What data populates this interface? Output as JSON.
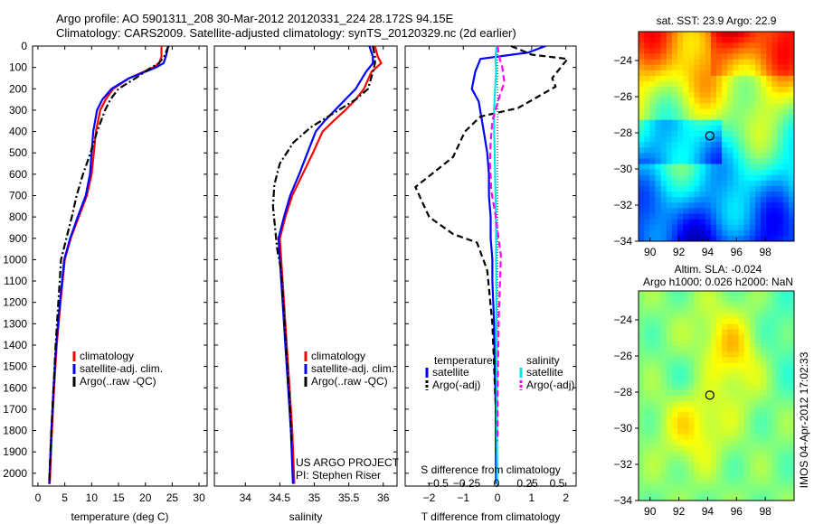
{
  "header": {
    "line1": "Argo profile: AO 5901311_208 30-Mar-2012 20120331_224 28.172S 94.15E",
    "line2": "Climatology: CARS2009. Satellite-adjusted climatology: synTS_20120329.nc (2d earlier)"
  },
  "colors": {
    "climatology": "#ff0000",
    "satellite": "#0000ff",
    "argo": "#000000",
    "sal_satellite": "#00e5e5",
    "sal_argo": "#ff00ff"
  },
  "chart_data": [
    {
      "id": "temperature",
      "type": "line",
      "xlabel": "temperature (deg C)",
      "xlim": [
        -1,
        31.5
      ],
      "ylim": [
        0,
        2060
      ],
      "xticks": [
        0,
        5,
        10,
        15,
        20,
        25,
        30
      ],
      "yticks": [
        0,
        100,
        200,
        300,
        400,
        500,
        600,
        700,
        800,
        900,
        1000,
        1100,
        1200,
        1300,
        1400,
        1500,
        1600,
        1700,
        1800,
        1900,
        2000
      ],
      "legend": [
        "climatology",
        "satellite-adj. clim.",
        "Argo(..raw -QC)"
      ],
      "series": [
        {
          "name": "climatology",
          "color": "#ff0000",
          "style": "solid",
          "x": [
            23,
            23,
            22.6,
            21.5,
            17,
            14,
            12.6,
            11.6,
            10.8,
            10.4,
            10.0,
            9.1,
            7.6,
            6.1,
            5.0,
            4.2,
            3.5,
            3.0,
            2.6,
            2.2
          ],
          "y": [
            0,
            50,
            80,
            100,
            150,
            200,
            250,
            300,
            400,
            500,
            600,
            700,
            800,
            900,
            1000,
            1200,
            1400,
            1600,
            1800,
            2050
          ]
        },
        {
          "name": "satellite-adj. clim.",
          "color": "#0000ff",
          "style": "solid",
          "x": [
            24.3,
            23.8,
            23.4,
            22.0,
            17.0,
            13.7,
            12.0,
            11.0,
            10.3,
            10.0,
            9.7,
            8.9,
            7.4,
            6.0,
            4.9,
            4.1,
            3.4,
            2.9,
            2.5,
            2.1
          ],
          "y": [
            0,
            50,
            80,
            100,
            150,
            200,
            250,
            300,
            400,
            500,
            600,
            700,
            800,
            900,
            1000,
            1200,
            1400,
            1600,
            1800,
            2050
          ]
        },
        {
          "name": "Argo(..raw -QC)",
          "color": "#000000",
          "style": "dashdot",
          "x": [
            24.3,
            23.5,
            22.5,
            20.5,
            18.2,
            15.0,
            13.5,
            12.5,
            11.0,
            9.8,
            8.4,
            7.2,
            6.3,
            5.3,
            4.3,
            3.8,
            3.3,
            2.9,
            2.5,
            2.1
          ],
          "y": [
            0,
            50,
            80,
            110,
            150,
            200,
            250,
            300,
            400,
            500,
            600,
            700,
            800,
            900,
            1000,
            1200,
            1400,
            1600,
            1800,
            2050
          ]
        }
      ]
    },
    {
      "id": "salinity",
      "type": "line",
      "xlabel": "salinity",
      "xlim": [
        33.55,
        36.2
      ],
      "ylim": [
        0,
        2060
      ],
      "xticks": [
        34,
        34.5,
        35,
        35.5,
        36
      ],
      "legend": [
        "climatology",
        "satellite-adj. clim.",
        "Argo(..raw -QC)"
      ],
      "annotation": [
        "US ARGO PROJECT",
        "PI: Stephen Riser"
      ],
      "series": [
        {
          "name": "climatology",
          "color": "#ff0000",
          "style": "solid",
          "x": [
            35.88,
            35.92,
            35.97,
            35.83,
            35.72,
            35.6,
            35.45,
            35.28,
            35.12,
            34.98,
            34.83,
            34.68,
            34.58,
            34.5,
            34.52,
            34.56,
            34.6,
            34.64,
            34.68,
            34.71
          ],
          "y": [
            0,
            50,
            80,
            120,
            200,
            250,
            300,
            350,
            400,
            500,
            600,
            700,
            800,
            900,
            1000,
            1200,
            1400,
            1600,
            1800,
            2050
          ]
        },
        {
          "name": "satellite-adj. clim.",
          "color": "#0000ff",
          "style": "solid",
          "x": [
            35.8,
            35.85,
            35.85,
            35.75,
            35.6,
            35.45,
            35.3,
            35.15,
            35.02,
            34.9,
            34.78,
            34.65,
            34.56,
            34.48,
            34.5,
            34.54,
            34.58,
            34.62,
            34.66,
            34.69
          ],
          "y": [
            0,
            50,
            80,
            120,
            200,
            250,
            300,
            350,
            400,
            500,
            600,
            700,
            800,
            900,
            1000,
            1200,
            1400,
            1600,
            1800,
            2050
          ]
        },
        {
          "name": "Argo(..raw -QC)",
          "color": "#000000",
          "style": "dashdot",
          "x": [
            35.85,
            35.88,
            35.88,
            35.85,
            35.78,
            35.6,
            35.25,
            34.95,
            34.7,
            34.5,
            34.42,
            34.4,
            34.43,
            34.46,
            34.52,
            34.56,
            34.6,
            34.64,
            34.67
          ],
          "y": [
            0,
            50,
            80,
            120,
            200,
            250,
            320,
            380,
            450,
            550,
            650,
            750,
            850,
            950,
            1050,
            1250,
            1450,
            1650,
            1850
          ]
        }
      ]
    },
    {
      "id": "difference",
      "type": "line",
      "xlabel": "T difference from climatology",
      "xlabel2": "S difference from climatology",
      "xlim": [
        -2.7,
        2.3
      ],
      "ylim": [
        0,
        2060
      ],
      "xticks": [
        -2,
        -1,
        0,
        1,
        2
      ],
      "xticks_s": [
        -0.5,
        -0.25,
        0,
        0.25,
        0.5
      ],
      "legend_titles": [
        "temperature",
        "salinity"
      ],
      "legend": [
        "satellite",
        "Argo(-adj)",
        "satellite",
        "Argo(-adj)"
      ],
      "series": [
        {
          "name": "satellite",
          "group": "temperature",
          "color": "#0000ff",
          "style": "solid",
          "x": [
            1.4,
            0.9,
            -0.5,
            -0.65,
            -0.75,
            -0.55,
            -0.4,
            -0.3,
            -0.25,
            -0.25,
            -0.2,
            -0.2,
            -0.15,
            -0.15,
            -0.1,
            -0.08,
            -0.05,
            -0.05,
            -0.04
          ],
          "y": [
            0,
            30,
            60,
            120,
            200,
            260,
            400,
            500,
            600,
            700,
            800,
            900,
            1000,
            1100,
            1300,
            1500,
            1700,
            1900,
            2050
          ]
        },
        {
          "name": "Argo(-adj)",
          "group": "temperature",
          "color": "#000000",
          "style": "dashed",
          "x": [
            0.4,
            1.0,
            2.05,
            1.6,
            1.7,
            0.6,
            -0.5,
            -0.95,
            -1.3,
            -2.4,
            -2.0,
            -1.3,
            -0.6,
            -0.3,
            -0.15,
            -0.1,
            -0.05,
            -0.03
          ],
          "y": [
            0,
            40,
            60,
            150,
            190,
            290,
            330,
            400,
            520,
            660,
            800,
            880,
            920,
            1050,
            1300,
            1500,
            1700,
            1900
          ]
        },
        {
          "name": "satellite",
          "group": "salinity",
          "color": "#00e5e5",
          "style": "solid",
          "x": [
            -0.03,
            -0.06,
            -0.04,
            -0.07,
            -0.1,
            -0.1,
            -0.08,
            -0.07,
            -0.06,
            -0.05,
            -0.04,
            -0.04,
            -0.03,
            -0.03,
            -0.02,
            -0.02,
            -0.01,
            -0.01
          ],
          "y": [
            0,
            60,
            120,
            200,
            300,
            400,
            500,
            600,
            700,
            800,
            900,
            1000,
            1200,
            1400,
            1600,
            1800,
            1950,
            2050
          ]
        },
        {
          "name": "Argo(-adj)",
          "group": "salinity",
          "color": "#ff00ff",
          "style": "dashed",
          "x": [
            0.0,
            0.05,
            0.14,
            0.2,
            0.05,
            -0.15,
            -0.2,
            -0.22,
            -0.18,
            -0.05,
            0.03,
            0.1,
            0.08,
            0.04,
            0.02,
            0.0,
            0.0
          ],
          "y": [
            0,
            50,
            100,
            170,
            240,
            350,
            450,
            550,
            680,
            800,
            900,
            980,
            1080,
            1250,
            1450,
            1650,
            1850
          ]
        }
      ]
    },
    {
      "id": "sst-map",
      "type": "heatmap",
      "title": "sat. SST: 23.9 Argo: 22.9",
      "xlim": [
        89.2,
        100
      ],
      "ylim": [
        -34,
        -22.4
      ],
      "xticks": [
        90,
        92,
        94,
        96,
        98
      ],
      "yticks": [
        -24,
        -26,
        -28,
        -30,
        -32,
        -34
      ],
      "argo_position": {
        "lon": 94.15,
        "lat": -28.17
      }
    },
    {
      "id": "sla-map",
      "type": "heatmap",
      "title": [
        "Altim. SLA: -0.024",
        "Argo h1000: 0.026 h2000: NaN"
      ],
      "xlim": [
        89.2,
        100
      ],
      "ylim": [
        -34,
        -22.4
      ],
      "xticks": [
        90,
        92,
        94,
        96,
        98
      ],
      "yticks": [
        -24,
        -26,
        -28,
        -30,
        -32,
        -34
      ],
      "argo_position": {
        "lon": 94.15,
        "lat": -28.17
      }
    }
  ],
  "credit": "IMOS 04-Apr-2012 17:02:33"
}
